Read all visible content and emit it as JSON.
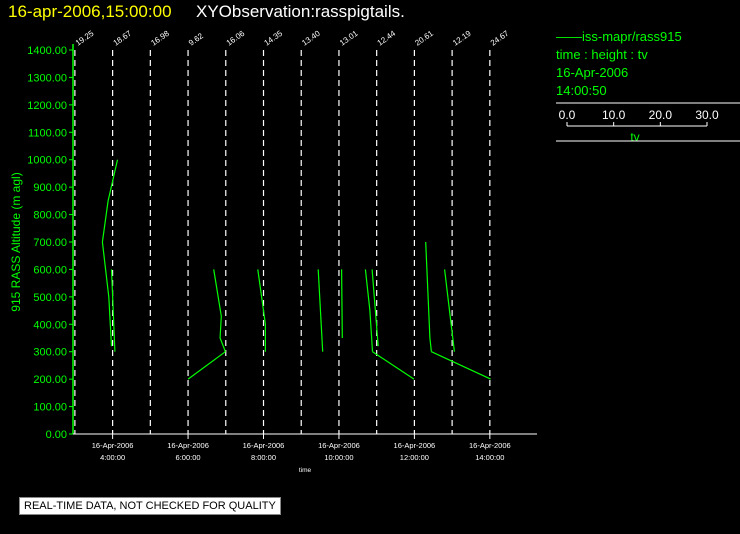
{
  "header": {
    "date_time": "16-apr-2006,15:00:00",
    "observation": "XYObservation:rasspigtails."
  },
  "legend": {
    "series_line": "iss-mapr/rass915",
    "vars": "time : height : tv",
    "date": "16-Apr-2006",
    "time": "14:00:50",
    "scale_ticks": [
      "0.0",
      "10.0",
      "20.0",
      "30.0"
    ],
    "scale_label": "tv",
    "color": "#00ff00"
  },
  "notice": "REAL-TIME DATA, NOT CHECKED FOR QUALITY",
  "chart_data": {
    "type": "line",
    "xlabel": "time",
    "ylabel": "915 RASS Altitude (m agl)",
    "ylim": [
      0,
      1400
    ],
    "yticks": [
      "0.00",
      "100.00",
      "200.00",
      "300.00",
      "400.00",
      "500.00",
      "600.00",
      "700.00",
      "800.00",
      "900.00",
      "1000.00",
      "1100.00",
      "1200.00",
      "1300.00",
      "1400.00"
    ],
    "xlim": [
      2.95,
      15.25
    ],
    "xticks": [
      {
        "x": 4,
        "date": "16-Apr-2006",
        "time": "4:00:00"
      },
      {
        "x": 6,
        "date": "16-Apr-2006",
        "time": "6:00:00"
      },
      {
        "x": 8,
        "date": "16-Apr-2006",
        "time": "8:00:00"
      },
      {
        "x": 10,
        "date": "16-Apr-2006",
        "time": "10:00:00"
      },
      {
        "x": 12,
        "date": "16-Apr-2006",
        "time": "12:00:00"
      },
      {
        "x": 14,
        "date": "16-Apr-2006",
        "time": "14:00:00"
      }
    ],
    "reference_lines": [
      {
        "x": 3.0,
        "label": "19.25"
      },
      {
        "x": 4.0,
        "label": "18.67"
      },
      {
        "x": 5.0,
        "label": "16.98"
      },
      {
        "x": 6.0,
        "label": "9.62"
      },
      {
        "x": 7.0,
        "label": "16.06"
      },
      {
        "x": 8.0,
        "label": "14.35"
      },
      {
        "x": 9.0,
        "label": "13.40"
      },
      {
        "x": 10.0,
        "label": "13.01"
      },
      {
        "x": 11.0,
        "label": "12.44"
      },
      {
        "x": 12.0,
        "label": "20.61"
      },
      {
        "x": 13.0,
        "label": "12.19"
      },
      {
        "x": 14.0,
        "label": "24.67"
      }
    ],
    "series": [
      {
        "color": "#00ff00",
        "segments": [
          [
            [
              3.73,
              700
            ],
            [
              3.88,
              850
            ],
            [
              4.13,
              1000
            ]
          ],
          [
            [
              3.73,
              700
            ],
            [
              3.9,
              500
            ],
            [
              3.97,
              320
            ]
          ],
          [
            [
              3.97,
              600
            ],
            [
              4.06,
              300
            ]
          ],
          [
            [
              6.68,
              600
            ],
            [
              6.88,
              430
            ],
            [
              6.85,
              350
            ],
            [
              6.99,
              300
            ]
          ],
          [
            [
              6.99,
              300
            ],
            [
              6.0,
              200
            ]
          ],
          [
            [
              7.85,
              600
            ],
            [
              8.05,
              400
            ],
            [
              8.05,
              300
            ]
          ],
          [
            [
              9.45,
              600
            ],
            [
              9.57,
              300
            ]
          ],
          [
            [
              10.07,
              600
            ],
            [
              10.09,
              350
            ]
          ],
          [
            [
              10.7,
              600
            ],
            [
              10.82,
              450
            ],
            [
              10.89,
              300
            ]
          ],
          [
            [
              10.88,
              600
            ],
            [
              11.04,
              320
            ]
          ],
          [
            [
              10.89,
              300
            ],
            [
              11.99,
              200
            ]
          ],
          [
            [
              12.3,
              700
            ],
            [
              12.41,
              350
            ],
            [
              12.45,
              300
            ]
          ],
          [
            [
              12.45,
              300
            ],
            [
              14.02,
              200
            ]
          ],
          [
            [
              12.8,
              600
            ],
            [
              13.06,
              300
            ]
          ]
        ]
      }
    ]
  }
}
